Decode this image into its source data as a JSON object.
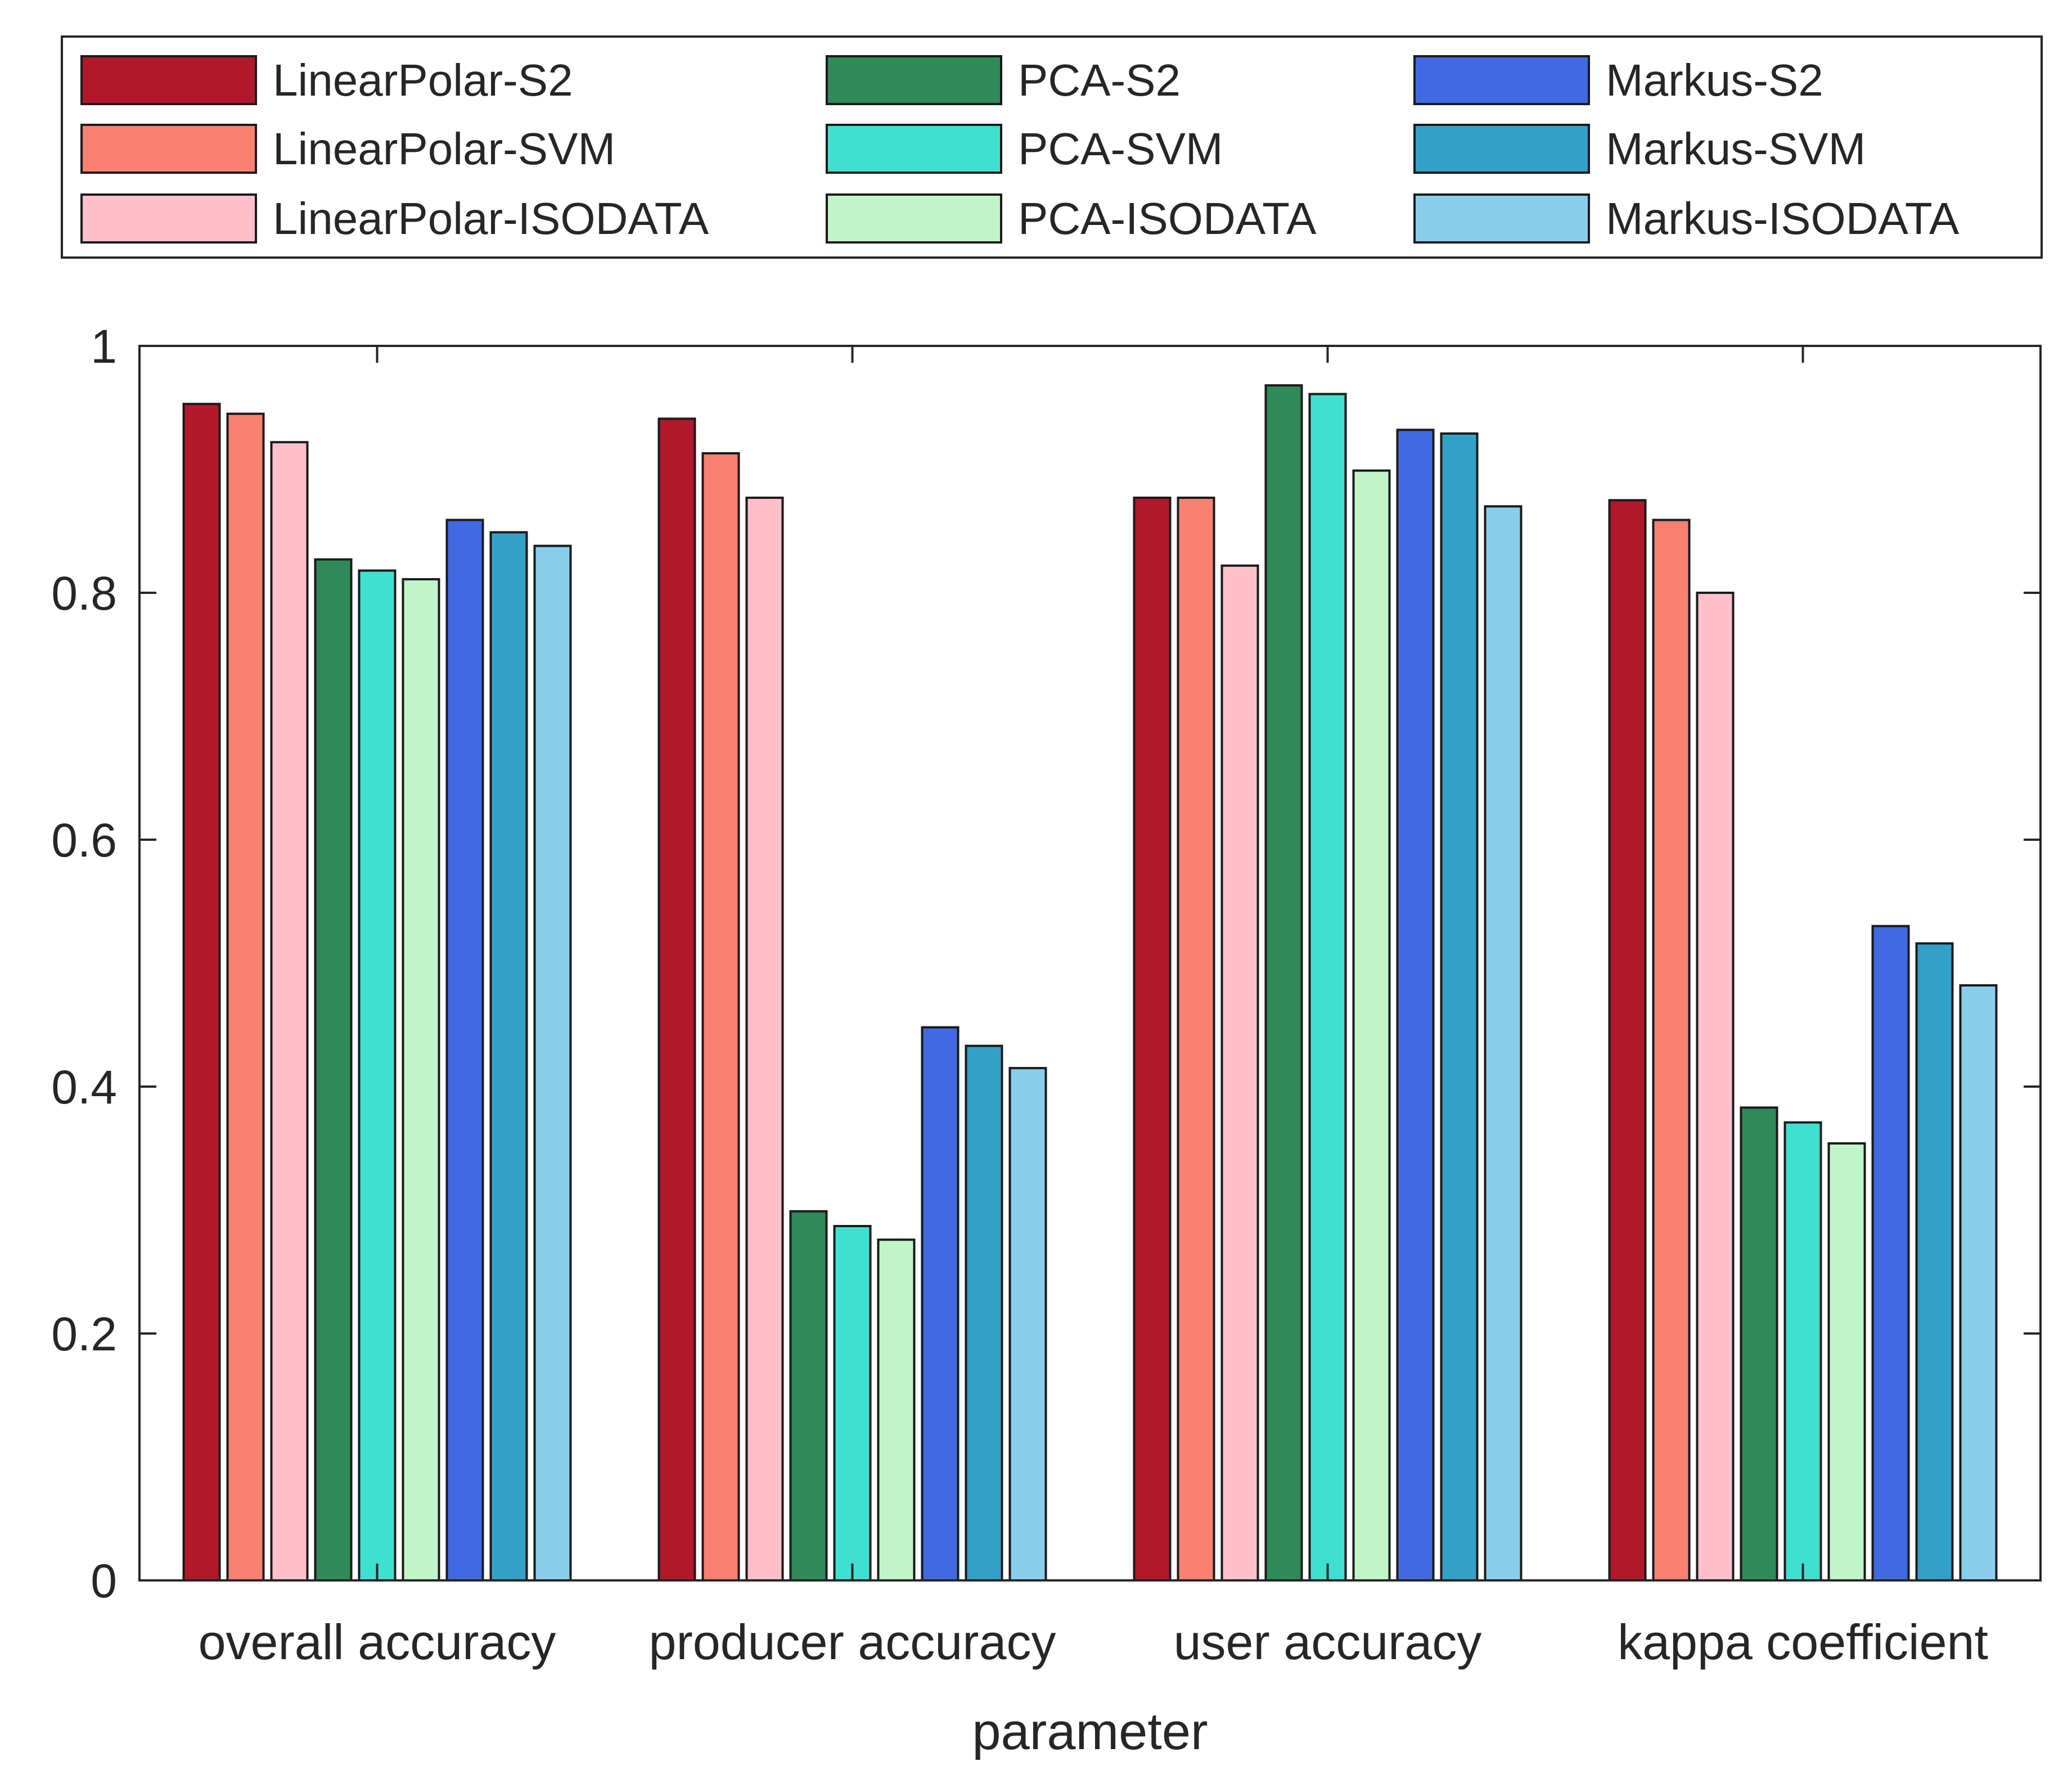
{
  "chart_data": {
    "type": "bar",
    "title": "",
    "xlabel": "parameter",
    "ylabel": "",
    "ylim": [
      0,
      1
    ],
    "yticks": [
      "0",
      "0.2",
      "0.4",
      "0.6",
      "0.8",
      "1"
    ],
    "ytick_values": [
      0,
      0.2,
      0.4,
      0.6,
      0.8,
      1
    ],
    "grid": false,
    "legend_position": "top",
    "categories": [
      "overall accuracy",
      "producer accuracy",
      "user accuracy",
      "kappa coefficient"
    ],
    "series": [
      {
        "name": "LinearPolar-S2",
        "color": "#b2182b",
        "values": [
          0.953,
          0.941,
          0.877,
          0.875
        ]
      },
      {
        "name": "LinearPolar-SVM",
        "color": "#fa8072",
        "values": [
          0.945,
          0.913,
          0.877,
          0.859
        ]
      },
      {
        "name": "LinearPolar-ISODATA",
        "color": "#ffc0cb",
        "values": [
          0.922,
          0.877,
          0.822,
          0.8
        ]
      },
      {
        "name": "PCA-S2",
        "color": "#2e8b57",
        "values": [
          0.827,
          0.299,
          0.968,
          0.383
        ]
      },
      {
        "name": "PCA-SVM",
        "color": "#40e0d0",
        "values": [
          0.818,
          0.287,
          0.961,
          0.371
        ]
      },
      {
        "name": "PCA-ISODATA",
        "color": "#c0f5c8",
        "values": [
          0.811,
          0.276,
          0.899,
          0.354
        ]
      },
      {
        "name": "Markus-S2",
        "color": "#4169e1",
        "values": [
          0.859,
          0.448,
          0.932,
          0.53
        ]
      },
      {
        "name": "Markus-SVM",
        "color": "#33a0c8",
        "values": [
          0.849,
          0.433,
          0.929,
          0.516
        ]
      },
      {
        "name": "Markus-ISODATA",
        "color": "#87ceeb",
        "values": [
          0.838,
          0.415,
          0.87,
          0.482
        ]
      }
    ]
  }
}
